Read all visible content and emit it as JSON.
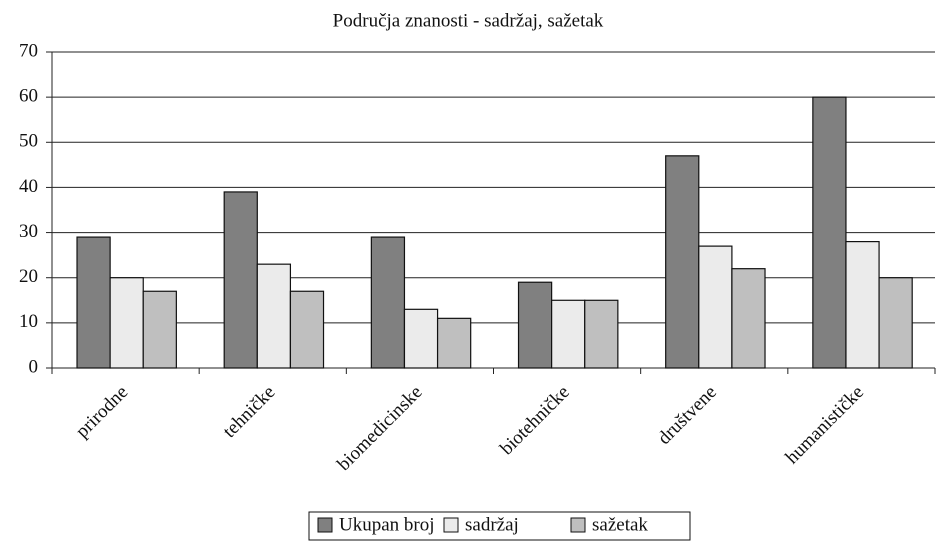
{
  "chart_data": {
    "type": "bar",
    "title": "Područja znanosti - sadržaj, sažetak",
    "categories": [
      "prirodne",
      "tehničke",
      "biomedicinske",
      "biotehničke",
      "društvene",
      "humanističke"
    ],
    "series": [
      {
        "name": "Ukupan broj",
        "color": "#808080",
        "values": [
          29,
          39,
          29,
          19,
          47,
          60
        ]
      },
      {
        "name": "sadržaj",
        "color": "#ebebeb",
        "values": [
          20,
          23,
          13,
          15,
          27,
          28
        ]
      },
      {
        "name": "sažetak",
        "color": "#bfbfbf",
        "values": [
          17,
          17,
          11,
          15,
          22,
          20
        ]
      }
    ],
    "ylim": [
      0,
      70
    ],
    "yticks": [
      0,
      10,
      20,
      30,
      40,
      50,
      60,
      70
    ],
    "grid": true,
    "legend": "bottom"
  }
}
